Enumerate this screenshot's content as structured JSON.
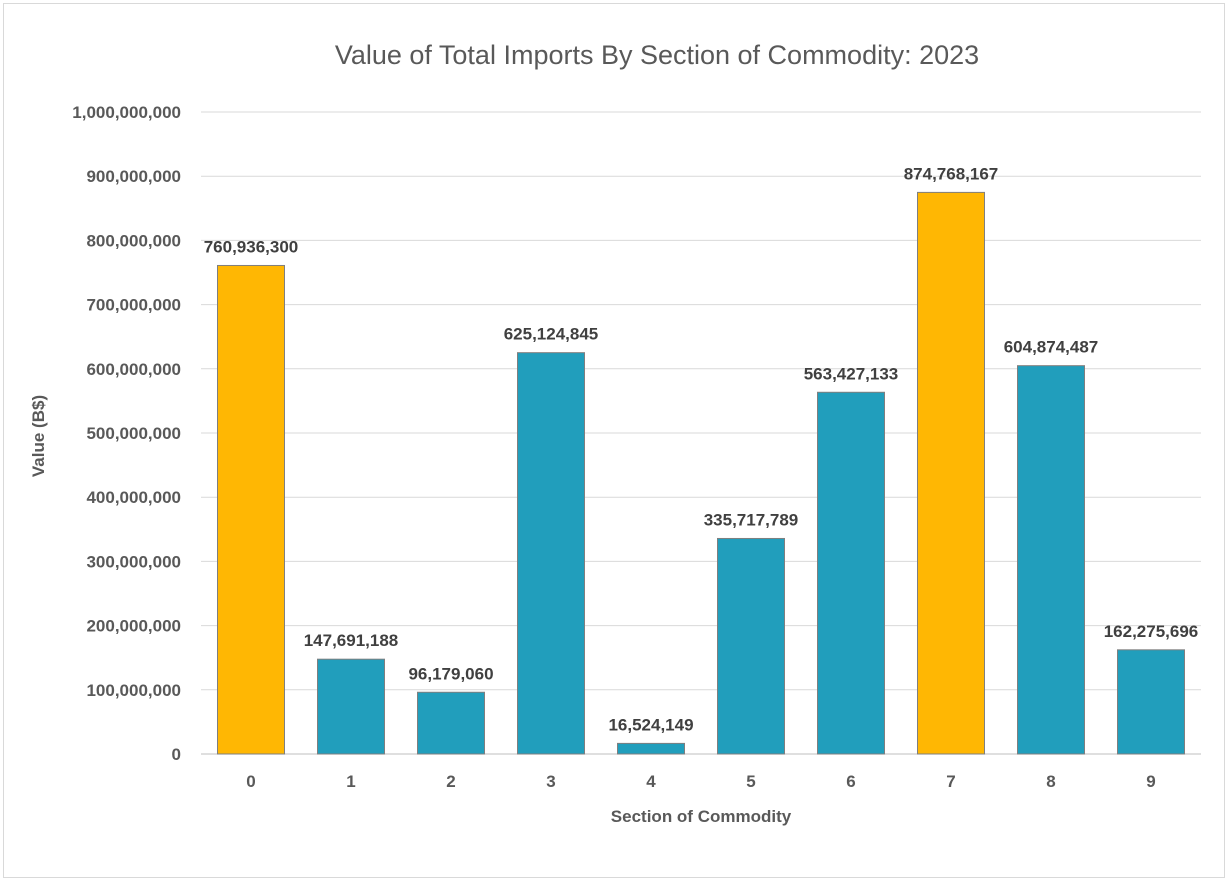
{
  "chart_data": {
    "type": "bar",
    "title": "Value of Total Imports By Section of Commodity: 2023",
    "xlabel": "Section of Commodity",
    "ylabel": "Value (B$)",
    "categories": [
      "0",
      "1",
      "2",
      "3",
      "4",
      "5",
      "6",
      "7",
      "8",
      "9"
    ],
    "values": [
      760936300,
      147691188,
      96179060,
      625124845,
      16524149,
      335717789,
      563427133,
      874768167,
      604874487,
      162275696
    ],
    "data_labels": [
      "760,936,300",
      "147,691,188",
      "96,179,060",
      "625,124,845",
      "16,524,149",
      "335,717,789",
      "563,427,133",
      "874,768,167",
      "604,874,487",
      "162,275,696"
    ],
    "yticks": [
      0,
      100000000,
      200000000,
      300000000,
      400000000,
      500000000,
      600000000,
      700000000,
      800000000,
      900000000,
      1000000000
    ],
    "ytick_labels": [
      "0",
      "100,000,000",
      "200,000,000",
      "300,000,000",
      "400,000,000",
      "500,000,000",
      "600,000,000",
      "700,000,000",
      "800,000,000",
      "900,000,000",
      "1,000,000,000"
    ],
    "ylim": [
      0,
      1000000000
    ],
    "grid": true,
    "legend": "none",
    "colors": {
      "default_bar": "#219ebc",
      "highlight_bar": "#ffb703",
      "bar_edge": "#7f7f7f",
      "gridline": "#d9d9d9",
      "axis": "#bfbfbf"
    },
    "highlighted_categories": [
      "0",
      "7"
    ]
  }
}
